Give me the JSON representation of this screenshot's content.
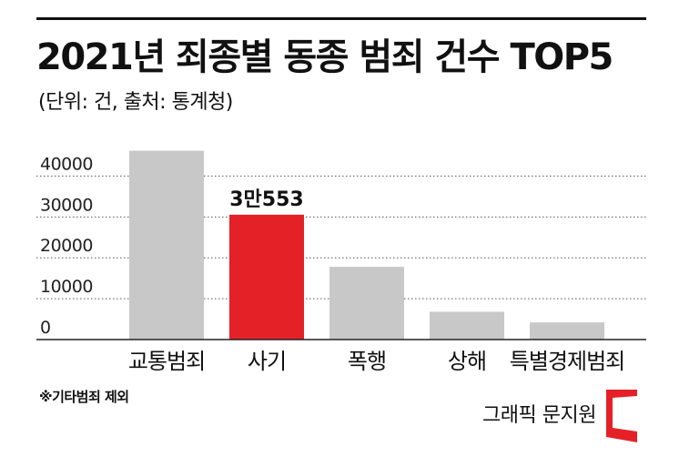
{
  "header": {
    "title": "2021년 죄종별 동종 범죄 건수 TOP5",
    "subtitle": "(단위: 건, 출처: 통계청)"
  },
  "chart_data": {
    "type": "bar",
    "title": "2021년 죄종별 동종 범죄 건수 TOP5",
    "unit": "건",
    "source": "통계청",
    "categories": [
      "교통범죄",
      "사기",
      "폭행",
      "상해",
      "특별경제범죄"
    ],
    "values": [
      46200,
      30553,
      17800,
      6800,
      4200
    ],
    "highlight_index": 1,
    "highlight_label": "3만553",
    "yticks": [
      0,
      10000,
      20000,
      30000,
      40000
    ],
    "ylim": [
      0,
      47000
    ],
    "grid": "dotted-horizontal",
    "colors": {
      "bar": "#c8c8c8",
      "highlight": "#e52128",
      "grid": "#555555",
      "axis": "#222222"
    }
  },
  "footer": {
    "note": "※기타범죄 제외",
    "credit": "그래픽 문지원"
  },
  "logo": {
    "icon": "red-bracket-logo",
    "color": "#e52128"
  }
}
